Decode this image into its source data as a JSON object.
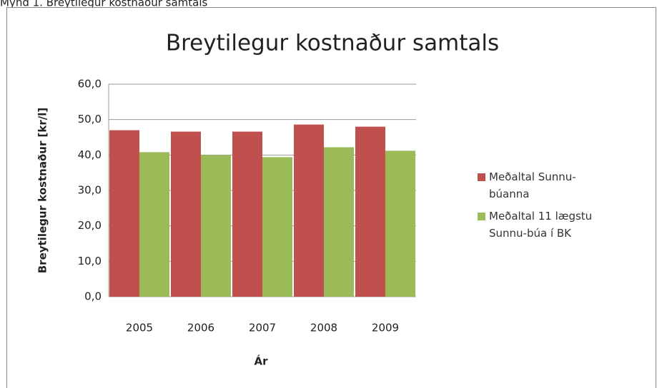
{
  "caption": "Mynd 1. Breytilegur kostnaður samtals",
  "chart_data": {
    "type": "bar",
    "title": "Breytilegur kostnaður samtals",
    "y_label": "Breytilegur kostnaður [kr/l]",
    "x_label": "Ár",
    "categories": [
      "2005",
      "2006",
      "2007",
      "2008",
      "2009"
    ],
    "series": [
      {
        "name": "Meðaltal Sunnu-búanna",
        "color": "#c0504d",
        "values": [
          47.0,
          46.6,
          46.6,
          48.6,
          48.0
        ]
      },
      {
        "name": "Meðaltal 11 lægstu Sunnu-búa í BK",
        "color": "#9bbb59",
        "values": [
          40.8,
          40.0,
          39.4,
          42.2,
          41.2
        ]
      }
    ],
    "ylim": [
      0,
      60
    ],
    "yticks": [
      {
        "value": 0,
        "label": "0,0"
      },
      {
        "value": 10,
        "label": "10,0"
      },
      {
        "value": 20,
        "label": "20,0"
      },
      {
        "value": 30,
        "label": "30,0"
      },
      {
        "value": 40,
        "label": "40,0"
      },
      {
        "value": 50,
        "label": "50,0"
      },
      {
        "value": 60,
        "label": "60,0"
      }
    ],
    "grid": true,
    "legend": "right"
  }
}
